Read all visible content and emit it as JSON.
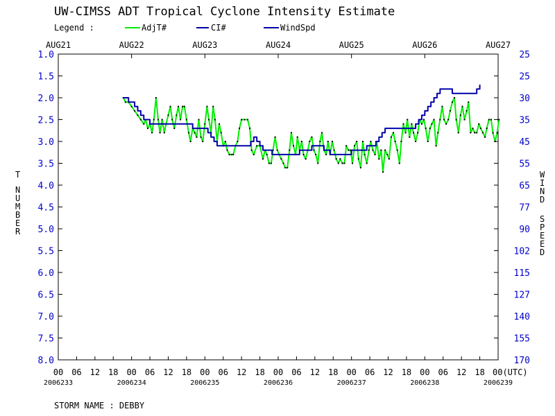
{
  "title": "UW-CIMSS ADT Tropical Cyclone Intensity Estimate",
  "legend": {
    "heading": "Legend :",
    "items": [
      {
        "label": "AdjT#",
        "color": "#00ee00"
      },
      {
        "label": "CI#",
        "color": "#0000aa"
      },
      {
        "label": "WindSpd",
        "color": "#0000aa"
      }
    ]
  },
  "storm_name": "STORM NAME : DEBBY",
  "chart_data": {
    "type": "line",
    "title": "UW-CIMSS ADT Tropical Cyclone Intensity Estimate",
    "xlabel": "",
    "ylabel_left": "T NUMBER",
    "ylabel_right": "WIND SPEED",
    "y_inverted": true,
    "ylim": [
      1.0,
      8.0
    ],
    "xlim_hours": [
      0,
      144
    ],
    "y_ticks_left": [
      "1.0",
      "1.5",
      "2.0",
      "2.5",
      "3.0",
      "3.5",
      "4.0",
      "4.5",
      "5.0",
      "5.5",
      "6.0",
      "6.5",
      "7.0",
      "7.5",
      "8.0"
    ],
    "y_ticks_right": [
      "25",
      "25",
      "30",
      "35",
      "45",
      "55",
      "65",
      "77",
      "90",
      "102",
      "115",
      "127",
      "140",
      "155",
      "170"
    ],
    "top_dates": [
      "AUG21",
      "AUG22",
      "AUG23",
      "AUG24",
      "AUG25",
      "AUG26",
      "AUG27"
    ],
    "bottom_hours": [
      "00",
      "06",
      "12",
      "18",
      "00",
      "06",
      "12",
      "18",
      "00",
      "06",
      "12",
      "18",
      "00",
      "06",
      "12",
      "18",
      "00",
      "06",
      "12",
      "18",
      "00",
      "06",
      "12",
      "18",
      "00(UTC)"
    ],
    "julian_dates": [
      "2006233",
      "2006234",
      "2006235",
      "2006236",
      "2006237",
      "2006238",
      "2006239"
    ],
    "series": [
      {
        "name": "AdjT#",
        "color": "#00ee00",
        "points": [
          [
            21.3,
            2.0
          ],
          [
            22.0,
            2.1
          ],
          [
            23.0,
            2.1
          ],
          [
            24.0,
            2.2
          ],
          [
            25.0,
            2.3
          ],
          [
            26.0,
            2.4
          ],
          [
            27.0,
            2.5
          ],
          [
            28.0,
            2.6
          ],
          [
            28.6,
            2.5
          ],
          [
            29.3,
            2.7
          ],
          [
            30.0,
            2.6
          ],
          [
            30.7,
            2.8
          ],
          [
            31.3,
            2.5
          ],
          [
            32.0,
            2.0
          ],
          [
            32.7,
            2.5
          ],
          [
            33.3,
            2.8
          ],
          [
            34.0,
            2.5
          ],
          [
            34.7,
            2.8
          ],
          [
            35.3,
            2.6
          ],
          [
            36.0,
            2.4
          ],
          [
            36.7,
            2.2
          ],
          [
            37.3,
            2.5
          ],
          [
            38.0,
            2.7
          ],
          [
            38.7,
            2.4
          ],
          [
            39.3,
            2.2
          ],
          [
            40.0,
            2.5
          ],
          [
            40.7,
            2.2
          ],
          [
            41.3,
            2.2
          ],
          [
            42.0,
            2.5
          ],
          [
            42.7,
            2.8
          ],
          [
            43.3,
            3.0
          ],
          [
            44.0,
            2.7
          ],
          [
            44.7,
            2.8
          ],
          [
            45.3,
            2.9
          ],
          [
            46.0,
            2.5
          ],
          [
            46.7,
            2.9
          ],
          [
            47.3,
            3.0
          ],
          [
            48.0,
            2.6
          ],
          [
            48.7,
            2.2
          ],
          [
            49.3,
            2.5
          ],
          [
            50.0,
            2.8
          ],
          [
            50.7,
            2.2
          ],
          [
            51.3,
            2.5
          ],
          [
            52.0,
            3.0
          ],
          [
            52.7,
            2.6
          ],
          [
            53.3,
            2.8
          ],
          [
            54.0,
            3.1
          ],
          [
            54.7,
            3.0
          ],
          [
            55.3,
            3.2
          ],
          [
            56.0,
            3.3
          ],
          [
            56.7,
            3.3
          ],
          [
            57.3,
            3.3
          ],
          [
            58.0,
            3.1
          ],
          [
            58.7,
            3.0
          ],
          [
            59.3,
            2.7
          ],
          [
            60.0,
            2.5
          ],
          [
            61.0,
            2.5
          ],
          [
            62.0,
            2.5
          ],
          [
            62.7,
            2.7
          ],
          [
            63.3,
            3.2
          ],
          [
            64.0,
            3.3
          ],
          [
            65.0,
            3.1
          ],
          [
            66.0,
            3.1
          ],
          [
            67.0,
            3.4
          ],
          [
            67.7,
            3.2
          ],
          [
            68.3,
            3.3
          ],
          [
            69.0,
            3.5
          ],
          [
            69.7,
            3.5
          ],
          [
            70.3,
            3.2
          ],
          [
            71.0,
            2.9
          ],
          [
            71.7,
            3.2
          ],
          [
            72.3,
            3.3
          ],
          [
            73.0,
            3.4
          ],
          [
            73.7,
            3.5
          ],
          [
            74.3,
            3.6
          ],
          [
            75.0,
            3.6
          ],
          [
            75.7,
            3.2
          ],
          [
            76.3,
            2.8
          ],
          [
            77.0,
            3.1
          ],
          [
            77.7,
            3.3
          ],
          [
            78.3,
            2.9
          ],
          [
            79.0,
            3.2
          ],
          [
            79.7,
            3.0
          ],
          [
            80.3,
            3.3
          ],
          [
            81.0,
            3.4
          ],
          [
            81.7,
            3.2
          ],
          [
            82.3,
            3.0
          ],
          [
            83.0,
            2.9
          ],
          [
            83.7,
            3.2
          ],
          [
            84.3,
            3.3
          ],
          [
            85.0,
            3.5
          ],
          [
            85.7,
            3.0
          ],
          [
            86.3,
            2.8
          ],
          [
            87.0,
            3.2
          ],
          [
            87.7,
            3.3
          ],
          [
            88.3,
            3.0
          ],
          [
            89.0,
            3.3
          ],
          [
            89.7,
            3.0
          ],
          [
            90.3,
            3.2
          ],
          [
            91.0,
            3.4
          ],
          [
            91.7,
            3.5
          ],
          [
            92.3,
            3.4
          ],
          [
            93.0,
            3.5
          ],
          [
            93.7,
            3.5
          ],
          [
            94.3,
            3.1
          ],
          [
            95.0,
            3.2
          ],
          [
            95.7,
            3.2
          ],
          [
            96.3,
            3.5
          ],
          [
            97.0,
            3.1
          ],
          [
            97.7,
            3.0
          ],
          [
            98.3,
            3.4
          ],
          [
            99.0,
            3.6
          ],
          [
            99.7,
            3.0
          ],
          [
            100.3,
            3.3
          ],
          [
            101.0,
            3.5
          ],
          [
            101.7,
            3.2
          ],
          [
            102.3,
            3.0
          ],
          [
            103.0,
            3.2
          ],
          [
            103.7,
            3.3
          ],
          [
            104.3,
            3.0
          ],
          [
            105.0,
            3.4
          ],
          [
            105.7,
            3.2
          ],
          [
            106.3,
            3.7
          ],
          [
            107.0,
            3.2
          ],
          [
            107.7,
            3.3
          ],
          [
            108.3,
            3.4
          ],
          [
            109.0,
            2.9
          ],
          [
            109.7,
            2.8
          ],
          [
            110.3,
            3.0
          ],
          [
            111.0,
            3.2
          ],
          [
            111.7,
            3.5
          ],
          [
            112.3,
            3.0
          ],
          [
            113.0,
            2.6
          ],
          [
            113.7,
            2.8
          ],
          [
            114.3,
            2.5
          ],
          [
            115.0,
            2.9
          ],
          [
            115.7,
            2.6
          ],
          [
            116.3,
            2.8
          ],
          [
            117.0,
            3.0
          ],
          [
            117.7,
            2.8
          ],
          [
            118.3,
            2.5
          ],
          [
            119.0,
            2.6
          ],
          [
            119.7,
            2.5
          ],
          [
            120.3,
            2.7
          ],
          [
            121.0,
            3.0
          ],
          [
            121.7,
            2.7
          ],
          [
            122.3,
            2.6
          ],
          [
            123.0,
            2.5
          ],
          [
            123.7,
            3.1
          ],
          [
            124.3,
            2.8
          ],
          [
            125.0,
            2.5
          ],
          [
            125.7,
            2.2
          ],
          [
            126.3,
            2.5
          ],
          [
            127.0,
            2.6
          ],
          [
            127.7,
            2.5
          ],
          [
            128.3,
            2.3
          ],
          [
            129.0,
            2.1
          ],
          [
            129.7,
            2.0
          ],
          [
            130.3,
            2.5
          ],
          [
            131.0,
            2.8
          ],
          [
            131.7,
            2.4
          ],
          [
            132.3,
            2.2
          ],
          [
            133.0,
            2.5
          ],
          [
            133.7,
            2.3
          ],
          [
            134.3,
            2.1
          ],
          [
            135.0,
            2.8
          ],
          [
            135.7,
            2.7
          ],
          [
            136.3,
            2.8
          ],
          [
            137.0,
            2.8
          ],
          [
            137.7,
            2.6
          ],
          [
            138.3,
            2.7
          ],
          [
            139.0,
            2.8
          ],
          [
            139.7,
            2.9
          ],
          [
            140.3,
            2.7
          ],
          [
            141.0,
            2.5
          ],
          [
            141.7,
            2.5
          ],
          [
            142.3,
            2.8
          ],
          [
            143.0,
            3.0
          ],
          [
            143.7,
            2.8
          ],
          [
            144.3,
            2.5
          ]
        ]
      },
      {
        "name": "CI#",
        "color": "#0000aa",
        "points": [
          [
            21.3,
            2.0
          ],
          [
            22.0,
            2.0
          ],
          [
            23.0,
            2.1
          ],
          [
            24.0,
            2.1
          ],
          [
            25.0,
            2.2
          ],
          [
            26.0,
            2.3
          ],
          [
            27.0,
            2.4
          ],
          [
            28.0,
            2.5
          ],
          [
            29.0,
            2.5
          ],
          [
            30.0,
            2.6
          ],
          [
            36.0,
            2.6
          ],
          [
            40.0,
            2.6
          ],
          [
            43.0,
            2.6
          ],
          [
            44.0,
            2.7
          ],
          [
            48.0,
            2.7
          ],
          [
            49.0,
            2.8
          ],
          [
            50.0,
            2.9
          ],
          [
            51.0,
            3.0
          ],
          [
            52.0,
            3.1
          ],
          [
            53.0,
            3.1
          ],
          [
            58.0,
            3.1
          ],
          [
            62.0,
            3.1
          ],
          [
            63.0,
            3.0
          ],
          [
            64.0,
            2.9
          ],
          [
            65.0,
            3.0
          ],
          [
            66.0,
            3.1
          ],
          [
            67.0,
            3.2
          ],
          [
            68.0,
            3.2
          ],
          [
            70.0,
            3.3
          ],
          [
            76.0,
            3.3
          ],
          [
            78.0,
            3.3
          ],
          [
            79.0,
            3.2
          ],
          [
            82.0,
            3.2
          ],
          [
            83.0,
            3.1
          ],
          [
            86.0,
            3.1
          ],
          [
            87.0,
            3.2
          ],
          [
            88.0,
            3.2
          ],
          [
            89.0,
            3.3
          ],
          [
            95.0,
            3.3
          ],
          [
            96.0,
            3.2
          ],
          [
            100.0,
            3.2
          ],
          [
            101.0,
            3.1
          ],
          [
            103.0,
            3.1
          ],
          [
            104.0,
            3.0
          ],
          [
            105.0,
            2.9
          ],
          [
            106.0,
            2.8
          ],
          [
            107.0,
            2.7
          ],
          [
            112.0,
            2.7
          ],
          [
            116.0,
            2.7
          ],
          [
            117.0,
            2.6
          ],
          [
            118.0,
            2.5
          ],
          [
            119.0,
            2.4
          ],
          [
            120.0,
            2.3
          ],
          [
            121.0,
            2.2
          ],
          [
            122.0,
            2.1
          ],
          [
            123.0,
            2.0
          ],
          [
            124.0,
            1.9
          ],
          [
            125.0,
            1.8
          ],
          [
            128.0,
            1.8
          ],
          [
            129.0,
            1.9
          ],
          [
            136.0,
            1.9
          ],
          [
            137.0,
            1.8
          ],
          [
            138.0,
            1.7
          ]
        ]
      },
      {
        "name": "WindSpd",
        "color": "#0000aa",
        "points": []
      }
    ]
  }
}
